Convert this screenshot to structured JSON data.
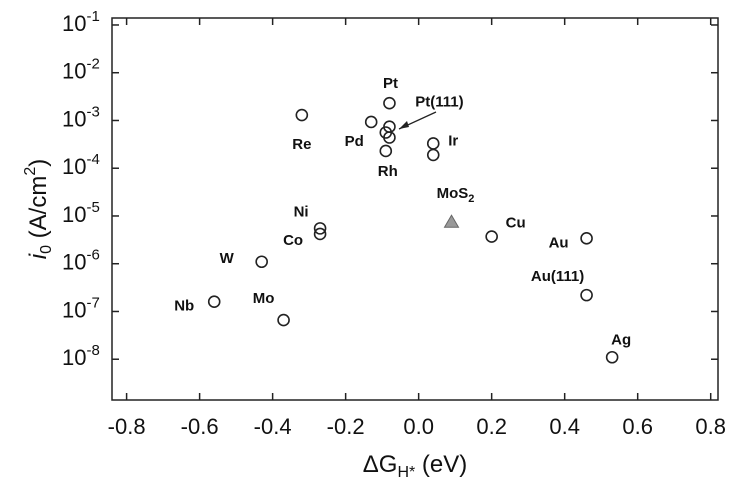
{
  "chart_data": {
    "type": "scatter",
    "x_label": {
      "main": "ΔG",
      "sub": "H*",
      "tail": " (eV)"
    },
    "y_label": {
      "main": "i",
      "sub": "0",
      "tail": " (A/cm",
      "sup": "2",
      "end": ")"
    },
    "xlim": [
      -0.84,
      0.82
    ],
    "xticks": [
      -0.8,
      -0.6,
      -0.4,
      -0.2,
      {
        "value": 0,
        "label": "0.0"
      },
      0.2,
      0.4,
      0.6,
      0.8
    ],
    "ylim": [
      1.4e-09,
      0.14
    ],
    "log_y": true,
    "yticks": [
      {
        "value": 0.1,
        "label": "10",
        "exponent": "-1"
      },
      {
        "value": 0.01,
        "label": "10",
        "exponent": "-2"
      },
      {
        "value": 0.001,
        "label": "10",
        "exponent": "-3"
      },
      {
        "value": 0.0001,
        "label": "10",
        "exponent": "-4"
      },
      {
        "value": 1e-05,
        "label": "10",
        "exponent": "-5"
      },
      {
        "value": 1e-06,
        "label": "10",
        "exponent": "-6"
      },
      {
        "value": 1e-07,
        "label": "10",
        "exponent": "-7"
      },
      {
        "value": 1e-08,
        "label": "10",
        "exponent": "-8"
      }
    ],
    "series": [
      {
        "marker": "circle",
        "color": "#222222",
        "x": [
          -0.56,
          -0.37,
          -0.43,
          -0.27,
          -0.27,
          -0.32,
          -0.13,
          -0.08,
          -0.08,
          -0.09,
          -0.08,
          -0.09,
          0.04,
          0.04,
          0.2,
          0.46,
          0.46,
          0.53
        ],
        "values": [
          1.6e-07,
          6.6e-08,
          1.1e-06,
          4.2e-06,
          5.5e-06,
          0.0013,
          0.00093,
          0.0023,
          0.00074,
          0.00056,
          0.00044,
          0.00023,
          0.00033,
          0.00019,
          3.7e-06,
          3.4e-06,
          2.2e-07,
          1.1e-08
        ],
        "labels": [
          "Nb",
          "Mo",
          "W",
          "Co",
          "Ni",
          "Re",
          "Pd",
          "Pt",
          "Pt(111)",
          null,
          null,
          "Rh",
          "Ir",
          null,
          "Cu",
          "Au",
          "Au(111)",
          "Ag"
        ]
      },
      {
        "marker": "triangle",
        "color": "#999999",
        "x": [
          0.09
        ],
        "values": [
          7.4e-06
        ],
        "labels": [
          "MoS"
        ],
        "label_sub": [
          "2"
        ]
      }
    ]
  }
}
